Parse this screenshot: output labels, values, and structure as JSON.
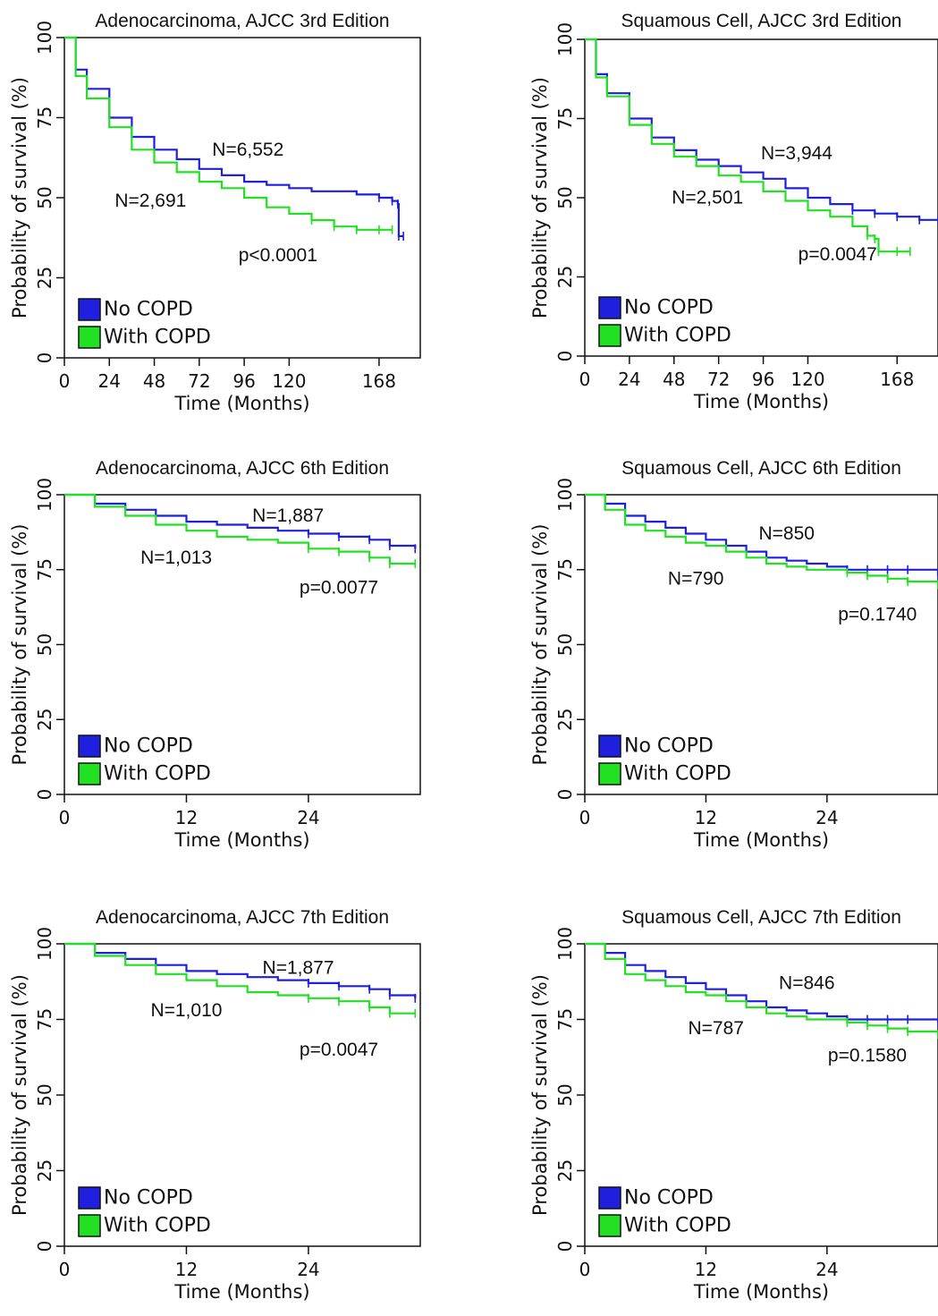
{
  "chart_data": [
    {
      "type": "line",
      "title": "Adenocarcinoma, AJCC 3rd Edition",
      "xlabel": "Time (Months)",
      "ylabel": "Probability of survival (%)",
      "xlim": [
        0,
        190
      ],
      "ylim": [
        0,
        100
      ],
      "xticks": [
        0,
        24,
        48,
        72,
        96,
        120,
        168
      ],
      "yticks": [
        0,
        25,
        50,
        75,
        100
      ],
      "legend": {
        "placement": "bottom-left",
        "entries": [
          "No COPD",
          "With COPD"
        ]
      },
      "series": [
        {
          "name": "No COPD",
          "color": "#1f1fe0",
          "x": [
            0,
            6,
            12,
            24,
            36,
            48,
            60,
            72,
            84,
            96,
            108,
            120,
            132,
            144,
            156,
            168,
            175,
            178,
            178.5,
            181
          ],
          "y": [
            100,
            90,
            84,
            75,
            69,
            65,
            62,
            59,
            57,
            55,
            54,
            53,
            52,
            52,
            51,
            50,
            49,
            48,
            38,
            38
          ]
        },
        {
          "name": "With COPD",
          "color": "#22e022",
          "x": [
            0,
            6,
            12,
            24,
            36,
            48,
            60,
            72,
            84,
            96,
            108,
            120,
            132,
            144,
            156,
            168,
            175
          ],
          "y": [
            100,
            88,
            81,
            72,
            65,
            61,
            58,
            55,
            53,
            50,
            47,
            45,
            43,
            41,
            40,
            40,
            40
          ]
        }
      ],
      "annotations": [
        {
          "text": "N=6,552",
          "x": 98,
          "y": 65
        },
        {
          "text": "N=2,691",
          "x": 46,
          "y": 49
        },
        {
          "text": "p<0.0001",
          "x": 114,
          "y": 32
        }
      ]
    },
    {
      "type": "line",
      "title": "Squamous Cell, AJCC 3rd Edition",
      "xlabel": "Time (Months)",
      "ylabel": "Probability of survival (%)",
      "xlim": [
        0,
        190
      ],
      "ylim": [
        0,
        100
      ],
      "xticks": [
        0,
        24,
        48,
        72,
        96,
        120,
        168
      ],
      "yticks": [
        0,
        25,
        50,
        75,
        100
      ],
      "legend": {
        "placement": "bottom-left",
        "entries": [
          "No COPD",
          "With COPD"
        ]
      },
      "series": [
        {
          "name": "No COPD",
          "color": "#1f1fe0",
          "x": [
            0,
            6,
            12,
            24,
            36,
            48,
            60,
            72,
            84,
            96,
            108,
            120,
            132,
            144,
            156,
            168,
            180,
            190
          ],
          "y": [
            100,
            89,
            83,
            75,
            69,
            65,
            62,
            60,
            58,
            56,
            53,
            50,
            48,
            46,
            45,
            44,
            43,
            43
          ]
        },
        {
          "name": "With COPD",
          "color": "#22e022",
          "x": [
            0,
            6,
            12,
            24,
            36,
            48,
            60,
            72,
            84,
            96,
            108,
            120,
            132,
            144,
            152,
            156,
            158,
            168,
            175
          ],
          "y": [
            100,
            88,
            82,
            73,
            67,
            63,
            60,
            57,
            55,
            52,
            49,
            46,
            44,
            41,
            38,
            37,
            33,
            33,
            33
          ]
        }
      ],
      "annotations": [
        {
          "text": "N=3,944",
          "x": 114,
          "y": 64
        },
        {
          "text": "N=2,501",
          "x": 66,
          "y": 50
        },
        {
          "text": "p=0.0047",
          "x": 136,
          "y": 32
        }
      ]
    },
    {
      "type": "line",
      "title": "Adenocarcinoma, AJCC 6th Edition",
      "xlabel": "Time (Months)",
      "ylabel": "Probability of survival (%)",
      "xlim": [
        0,
        35
      ],
      "ylim": [
        0,
        100
      ],
      "xticks": [
        0,
        12,
        24
      ],
      "yticks": [
        0,
        25,
        50,
        75,
        100
      ],
      "legend": {
        "placement": "bottom-left",
        "entries": [
          "No COPD",
          "With COPD"
        ]
      },
      "series": [
        {
          "name": "No COPD",
          "color": "#1f1fe0",
          "x": [
            0,
            3,
            6,
            9,
            12,
            15,
            18,
            21,
            24,
            27,
            30,
            32,
            34.5
          ],
          "y": [
            100,
            97,
            95,
            93,
            91,
            90,
            89,
            88,
            87,
            86,
            85,
            83,
            82
          ]
        },
        {
          "name": "With COPD",
          "color": "#22e022",
          "x": [
            0,
            3,
            6,
            9,
            12,
            15,
            18,
            21,
            24,
            27,
            30,
            32,
            34.5
          ],
          "y": [
            100,
            96,
            93,
            90,
            88,
            86,
            85,
            84,
            82,
            81,
            79,
            77,
            77
          ]
        }
      ],
      "annotations": [
        {
          "text": "N=1,887",
          "x": 22,
          "y": 93
        },
        {
          "text": "N=1,013",
          "x": 11,
          "y": 79
        },
        {
          "text": "p=0.0077",
          "x": 27,
          "y": 69
        }
      ]
    },
    {
      "type": "line",
      "title": "Squamous Cell, AJCC 6th Edition",
      "xlabel": "Time (Months)",
      "ylabel": "Probability of survival (%)",
      "xlim": [
        0,
        35
      ],
      "ylim": [
        0,
        100
      ],
      "xticks": [
        0,
        12,
        24
      ],
      "yticks": [
        0,
        25,
        50,
        75,
        100
      ],
      "legend": {
        "placement": "bottom-left",
        "entries": [
          "No COPD",
          "With COPD"
        ]
      },
      "series": [
        {
          "name": "No COPD",
          "color": "#1f1fe0",
          "x": [
            0,
            2,
            4,
            6,
            8,
            10,
            12,
            14,
            16,
            18,
            20,
            22,
            24,
            26,
            28,
            30,
            32,
            35
          ],
          "y": [
            100,
            97,
            93,
            91,
            89,
            87,
            85,
            83,
            81,
            79,
            78,
            77,
            76,
            75,
            75,
            75,
            75,
            73
          ]
        },
        {
          "name": "With COPD",
          "color": "#22e022",
          "x": [
            0,
            2,
            4,
            6,
            8,
            10,
            12,
            14,
            16,
            18,
            20,
            22,
            24,
            26,
            28,
            30,
            32,
            35
          ],
          "y": [
            100,
            95,
            90,
            88,
            86,
            84,
            83,
            81,
            79,
            77,
            76,
            75,
            75,
            74,
            73,
            72,
            71,
            70
          ]
        }
      ],
      "annotations": [
        {
          "text": "N=850",
          "x": 20,
          "y": 87
        },
        {
          "text": "N=790",
          "x": 11,
          "y": 72
        },
        {
          "text": "p=0.1740",
          "x": 29,
          "y": 60
        }
      ]
    },
    {
      "type": "line",
      "title": "Adenocarcinoma, AJCC 7th Edition",
      "xlabel": "Time (Months)",
      "ylabel": "Probability of survival (%)",
      "xlim": [
        0,
        35
      ],
      "ylim": [
        0,
        100
      ],
      "xticks": [
        0,
        12,
        24
      ],
      "yticks": [
        0,
        25,
        50,
        75,
        100
      ],
      "legend": {
        "placement": "bottom-left",
        "entries": [
          "No COPD",
          "With COPD"
        ]
      },
      "series": [
        {
          "name": "No COPD",
          "color": "#1f1fe0",
          "x": [
            0,
            3,
            6,
            9,
            12,
            15,
            18,
            21,
            24,
            27,
            30,
            32,
            34.5
          ],
          "y": [
            100,
            97,
            95,
            93,
            91,
            90,
            89,
            88,
            87,
            86,
            85,
            83,
            82
          ]
        },
        {
          "name": "With COPD",
          "color": "#22e022",
          "x": [
            0,
            3,
            6,
            9,
            12,
            15,
            18,
            21,
            24,
            27,
            30,
            32,
            34.5
          ],
          "y": [
            100,
            96,
            93,
            90,
            88,
            86,
            84,
            83,
            82,
            81,
            79,
            77,
            77
          ]
        }
      ],
      "annotations": [
        {
          "text": "N=1,877",
          "x": 23,
          "y": 92
        },
        {
          "text": "N=1,010",
          "x": 12,
          "y": 78
        },
        {
          "text": "p=0.0047",
          "x": 27,
          "y": 65
        }
      ]
    },
    {
      "type": "line",
      "title": "Squamous Cell, AJCC 7th Edition",
      "xlabel": "Time (Months)",
      "ylabel": "Probability of survival (%)",
      "xlim": [
        0,
        35
      ],
      "ylim": [
        0,
        100
      ],
      "xticks": [
        0,
        12,
        24
      ],
      "yticks": [
        0,
        25,
        50,
        75,
        100
      ],
      "legend": {
        "placement": "bottom-left",
        "entries": [
          "No COPD",
          "With COPD"
        ]
      },
      "series": [
        {
          "name": "No COPD",
          "color": "#1f1fe0",
          "x": [
            0,
            2,
            4,
            6,
            8,
            10,
            12,
            14,
            16,
            18,
            20,
            22,
            24,
            26,
            28,
            30,
            32,
            35
          ],
          "y": [
            100,
            97,
            93,
            91,
            89,
            87,
            85,
            83,
            81,
            79,
            78,
            77,
            76,
            75,
            75,
            75,
            75,
            74
          ]
        },
        {
          "name": "With COPD",
          "color": "#22e022",
          "x": [
            0,
            2,
            4,
            6,
            8,
            10,
            12,
            14,
            16,
            18,
            20,
            22,
            24,
            26,
            28,
            30,
            32,
            35
          ],
          "y": [
            100,
            95,
            90,
            88,
            86,
            84,
            83,
            81,
            79,
            77,
            76,
            75,
            75,
            74,
            73,
            72,
            71,
            70
          ]
        }
      ],
      "annotations": [
        {
          "text": "N=846",
          "x": 22,
          "y": 87
        },
        {
          "text": "N=787",
          "x": 13,
          "y": 72
        },
        {
          "text": "p=0.1580",
          "x": 28,
          "y": 63
        }
      ]
    }
  ]
}
